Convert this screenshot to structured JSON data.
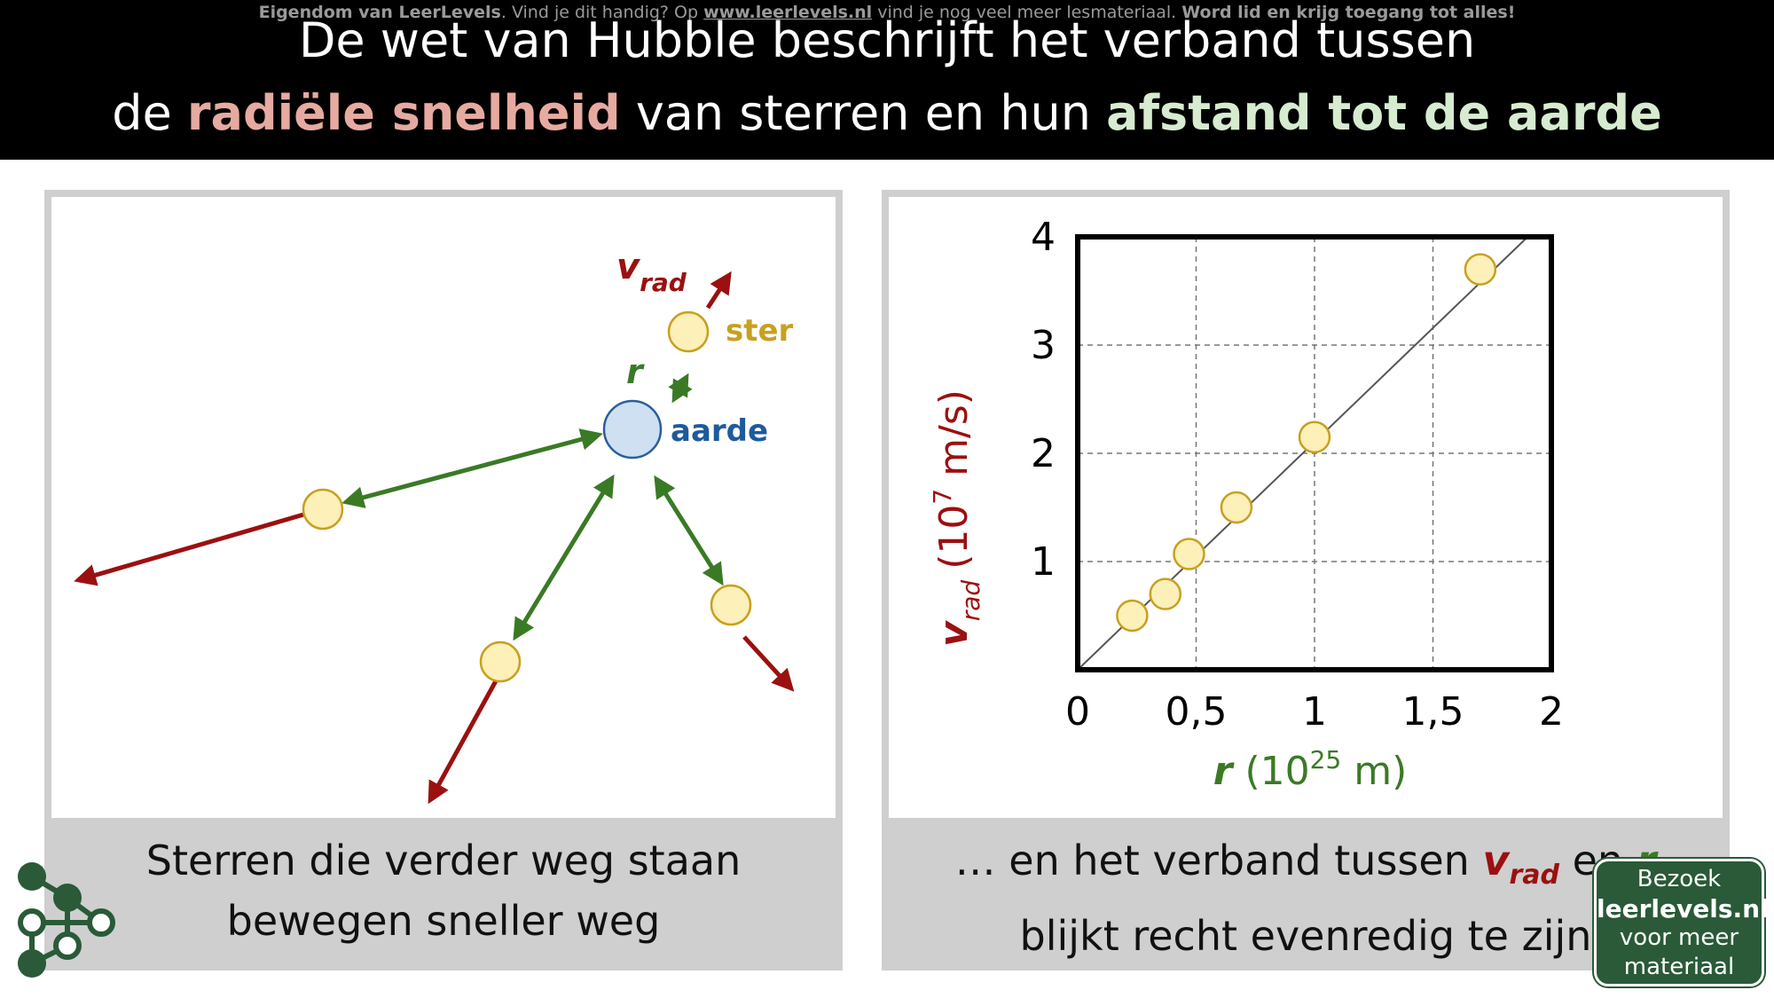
{
  "watermark": {
    "owner": "Eigendom van LeerLevels",
    "text1": ". Vind je dit handig? Op ",
    "url": "www.leerlevels.nl",
    "text2": " vind je nog veel meer lesmateriaal. ",
    "cta": "Word lid en krijg toegang tot alles!"
  },
  "title": {
    "line1": "De wet van Hubble beschrijft het verband tussen",
    "line2_pre": "de ",
    "line2_red": "radiële snelheid",
    "line2_mid": " van sterren en hun ",
    "line2_green": "afstand tot de aarde"
  },
  "diagram": {
    "v_label": "v",
    "v_sub": "rad",
    "star_label": "ster",
    "r_label": "r",
    "earth_label": "aarde"
  },
  "chart_data": {
    "type": "scatter",
    "x": [
      0.23,
      0.37,
      0.47,
      0.67,
      1.0,
      1.7
    ],
    "y": [
      0.5,
      0.7,
      1.07,
      1.5,
      2.15,
      3.7
    ],
    "trendline": {
      "x": [
        0,
        1.9
      ],
      "y": [
        0,
        4.0
      ]
    },
    "xlim": [
      0,
      2
    ],
    "ylim": [
      0,
      4
    ],
    "xticks": [
      "0",
      "0,5",
      "1",
      "1,5",
      "2"
    ],
    "yticks": [
      "1",
      "2",
      "3",
      "4"
    ],
    "xlabel": {
      "var": "r",
      "unit_pre": " (10",
      "exp": "25",
      "unit_post": " m)"
    },
    "ylabel": {
      "var": "v",
      "sub": "rad",
      "unit_pre": "(10",
      "exp": "7",
      "unit_post": " m/s)"
    },
    "grid": true
  },
  "captions": {
    "left_line1": "Sterren die verder weg staan",
    "left_line2": "bewegen sneller weg",
    "right_pre": "… en het verband tussen ",
    "right_v": "v",
    "right_sub": "rad",
    "right_mid": " en ",
    "right_r": "r",
    "right_line2": "blijkt recht evenredig te zijn"
  },
  "badge": {
    "line1": "Bezoek",
    "line2": "leerlevels.nl",
    "line3": "voor meer",
    "line4": "materiaal"
  },
  "colors": {
    "red_arrow": "#9b1010",
    "green_arrow": "#3a7a25",
    "star_fill": "#fdf0b8",
    "star_stroke": "#c8a020",
    "earth_fill": "#cfe0f3",
    "earth_stroke": "#2a5f9c",
    "badge_bg": "#2a5a38"
  }
}
